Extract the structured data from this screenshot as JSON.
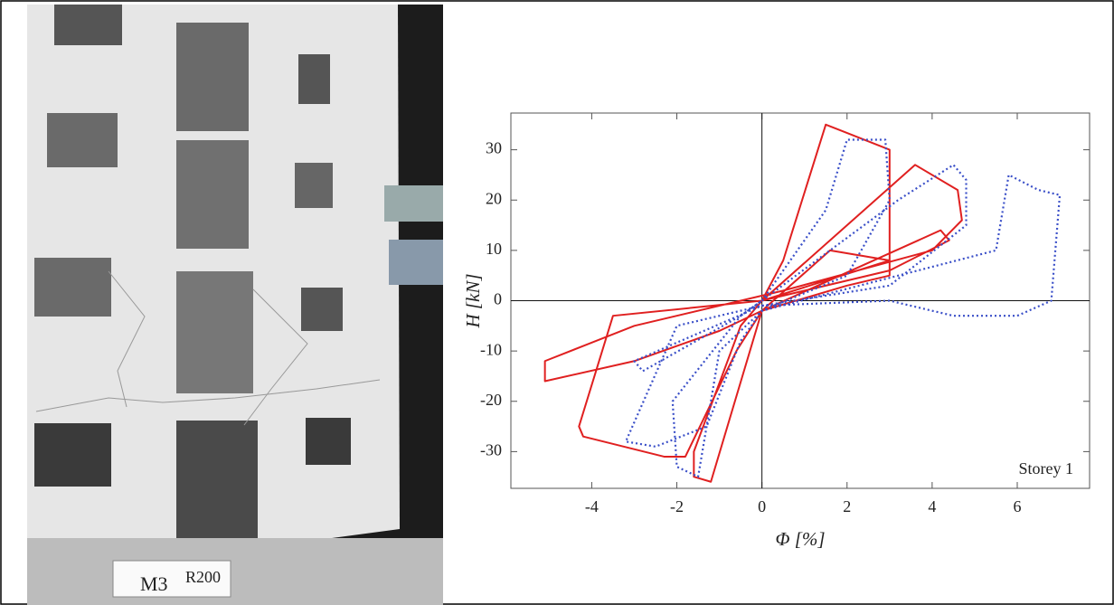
{
  "photo": {
    "labels": [
      "M3",
      "R200"
    ]
  },
  "chart_data": {
    "type": "line",
    "xlabel": "Φ [%]",
    "ylabel": "H [kN]",
    "annotation": "Storey 1",
    "xlim": [
      -5.9,
      7.7
    ],
    "ylim": [
      -37.3,
      37.3
    ],
    "xticks": [
      -4,
      -2,
      0,
      2,
      4,
      6
    ],
    "yticks": [
      -30,
      -20,
      -10,
      0,
      10,
      20,
      30
    ],
    "zero_lines": true,
    "series": [
      {
        "color": "#e02020",
        "style": "solid",
        "x": [
          0,
          0.5,
          1.5,
          1.8,
          3,
          3,
          2,
          0,
          -1.2,
          -1.6,
          -1.6,
          -0.5,
          0,
          3.6,
          4.6,
          4.7,
          4,
          0.5,
          -3,
          -5.1,
          -5.1,
          -3,
          -1,
          0,
          4.2,
          4.4,
          3,
          0,
          -3.5,
          -4.3,
          -4.2,
          -2.3,
          -1.8,
          -0.6,
          0,
          1.6,
          3,
          0
        ],
        "values": [
          0,
          8,
          35,
          34,
          30,
          5,
          3,
          -2,
          -36,
          -35,
          -30,
          -5,
          0,
          27,
          22,
          16,
          10,
          2,
          -5,
          -12,
          -16,
          -12,
          -6,
          -2,
          14,
          12,
          6,
          0,
          -3,
          -25,
          -27,
          -31,
          -31,
          -10,
          -2,
          10,
          8,
          0
        ]
      },
      {
        "color": "#3a4fc8",
        "style": "dotted",
        "x": [
          0,
          1.5,
          2,
          2.9,
          3,
          2,
          0,
          -1,
          -1.5,
          -2,
          -2.1,
          -0.5,
          0,
          3.2,
          4.5,
          4.8,
          4.8,
          3,
          0,
          -2,
          -3.2,
          -2.5,
          -1.3,
          -0.5,
          0,
          5.5,
          5.8,
          6.5,
          7,
          6.8,
          6,
          4.5,
          3,
          0,
          -3,
          -2.8,
          -0.5,
          0
        ],
        "values": [
          0,
          18,
          32,
          32,
          20,
          5,
          -2,
          -10,
          -35,
          -33,
          -20,
          -3,
          0,
          20,
          27,
          24,
          15,
          3,
          -1,
          -5,
          -28,
          -29,
          -25,
          -8,
          -2,
          10,
          25,
          22,
          21,
          0,
          -3,
          -3,
          0,
          -1,
          -12,
          -14,
          -3,
          0
        ]
      }
    ]
  }
}
